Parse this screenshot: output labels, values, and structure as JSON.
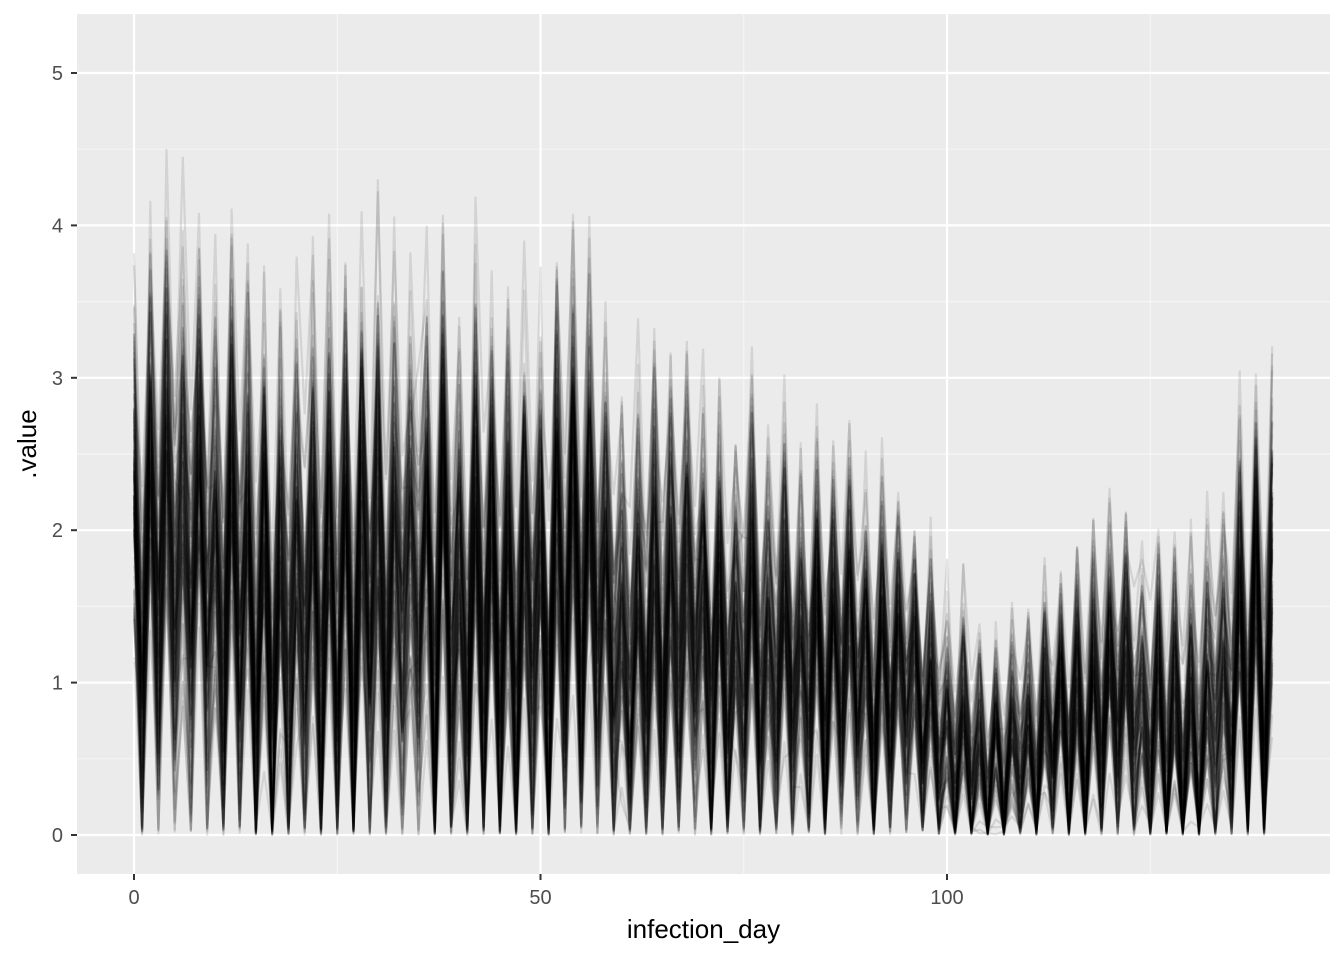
{
  "chart_data": {
    "type": "line",
    "title": "",
    "xlabel": "infection_day",
    "ylabel": ".value",
    "xlim": [
      0,
      140
    ],
    "ylim": [
      0,
      5.13
    ],
    "x_ticks": [
      0,
      50,
      100
    ],
    "x_tick_labels": [
      "0",
      "50",
      "100"
    ],
    "y_ticks": [
      0,
      1,
      2,
      3,
      4,
      5
    ],
    "y_tick_labels": [
      "0",
      "1",
      "2",
      "3",
      "4",
      "5"
    ],
    "grid": true,
    "legend": "none",
    "series_count": 100,
    "line_color": "#000000",
    "line_opacity": 0.1,
    "envelope_description": "approximate central level per day across all draws",
    "center_profile": {
      "x": [
        0,
        5,
        10,
        15,
        20,
        25,
        30,
        35,
        40,
        45,
        50,
        55,
        60,
        65,
        70,
        75,
        80,
        85,
        90,
        95,
        98,
        100,
        105,
        110,
        115,
        120,
        125,
        130,
        135,
        140
      ],
      "y": [
        1.75,
        2.05,
        1.7,
        1.55,
        1.5,
        1.65,
        1.6,
        1.7,
        1.55,
        1.45,
        1.5,
        1.8,
        1.1,
        1.5,
        1.25,
        1.3,
        1.1,
        1.05,
        1.1,
        1.2,
        0.6,
        0.6,
        0.45,
        0.55,
        0.7,
        0.95,
        0.65,
        0.6,
        1.0,
        1.35
      ]
    },
    "spread_profile": {
      "x": [
        0,
        10,
        30,
        50,
        60,
        80,
        100,
        110,
        120,
        135,
        140
      ],
      "y": [
        1.3,
        1.4,
        1.4,
        1.3,
        1.2,
        1.0,
        0.7,
        0.6,
        0.8,
        0.9,
        1.2
      ]
    }
  },
  "colors": {
    "panel_background": "#ebebeb",
    "grid_major": "#ffffff",
    "grid_minor": "#f5f5f5",
    "tick_text": "#4d4d4d",
    "axis_title": "#000000"
  }
}
